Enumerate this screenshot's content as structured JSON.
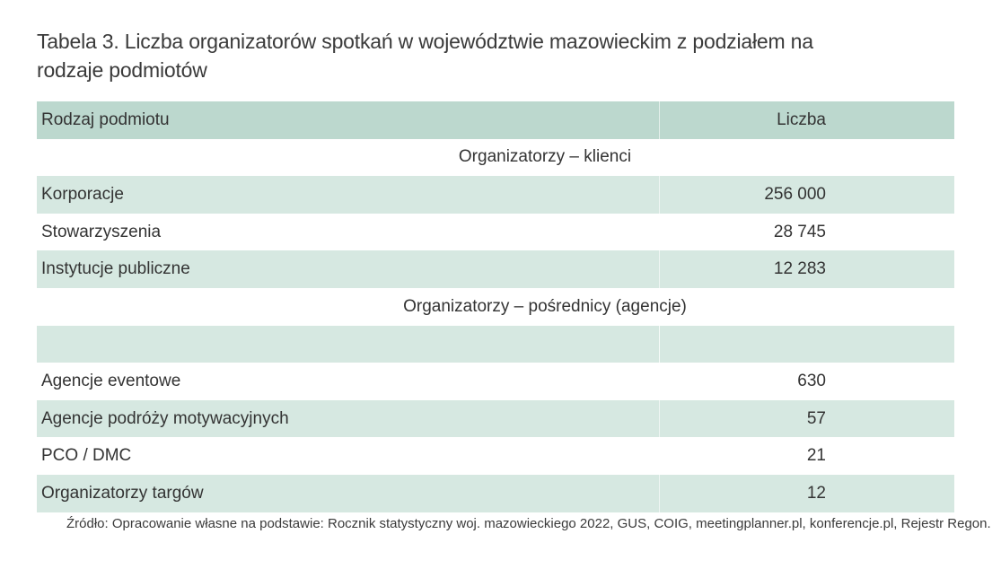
{
  "title": "Tabela 3. Liczba organizatorów spotkań w województwie mazowieckim z podziałem na rodzaje podmiotów",
  "header": {
    "col_type": "Rodzaj podmiotu",
    "col_count": "Liczba"
  },
  "section_clients": {
    "label": "Organizatorzy – klienci",
    "rows": [
      {
        "name": "Korporacje",
        "value": "256 000"
      },
      {
        "name": "Stowarzyszenia",
        "value": "28 745"
      },
      {
        "name": "Instytucje publiczne",
        "value": "12 283"
      }
    ]
  },
  "section_agencies": {
    "label": "Organizatorzy – pośrednicy (agencje)",
    "rows": [
      {
        "name": "Agencje eventowe",
        "value": "630"
      },
      {
        "name": "Agencje podróży motywacyjnych",
        "value": "57"
      },
      {
        "name": "PCO / DMC",
        "value": "21"
      },
      {
        "name": "Organizatorzy targów",
        "value": "12"
      }
    ]
  },
  "source": "Źródło: Opracowanie własne na podstawie: Rocznik statystyczny woj. mazowieckiego 2022, GUS, COIG, meetingplanner.pl, konferencje.pl, Rejestr Regon."
}
